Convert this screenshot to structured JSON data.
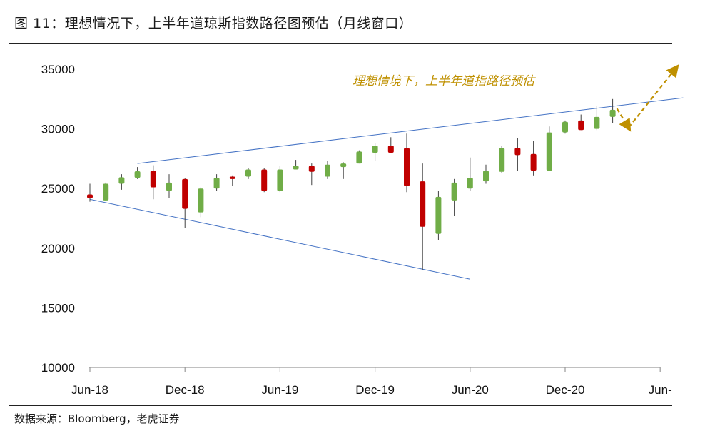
{
  "figure": {
    "title": "图 11：理想情况下，上半年道琼斯指数路径图预估（月线窗口）",
    "source": "数据来源：Bloomberg，老虎证券"
  },
  "chart_data": {
    "type": "candlestick",
    "title": "",
    "xlabel": "",
    "ylabel": "",
    "ylim": [
      10000,
      35000
    ],
    "y_ticks": [
      "35000",
      "30000",
      "25000",
      "20000",
      "15000",
      "10000"
    ],
    "x_ticks": [
      "Jun-18",
      "Dec-18",
      "Jun-19",
      "Dec-19",
      "Jun-20",
      "Dec-20",
      "Jun-"
    ],
    "up_color": "#70ad47",
    "down_color": "#c00000",
    "line_color": "#4472c4",
    "projection_color": "#bf9000",
    "candles": [
      {
        "date": "2018-06",
        "open": 24500,
        "high": 25400,
        "low": 23900,
        "close": 24200
      },
      {
        "date": "2018-07",
        "open": 24000,
        "high": 25500,
        "low": 24000,
        "close": 25400
      },
      {
        "date": "2018-08",
        "open": 25400,
        "high": 26200,
        "low": 24900,
        "close": 25950
      },
      {
        "date": "2018-09",
        "open": 25900,
        "high": 26800,
        "low": 25800,
        "close": 26450
      },
      {
        "date": "2018-10",
        "open": 26500,
        "high": 26950,
        "low": 24100,
        "close": 25100
      },
      {
        "date": "2018-11",
        "open": 24800,
        "high": 26200,
        "low": 24200,
        "close": 25500
      },
      {
        "date": "2018-12",
        "open": 25800,
        "high": 25900,
        "low": 21700,
        "close": 23300
      },
      {
        "date": "2019-01",
        "open": 23000,
        "high": 25100,
        "low": 22600,
        "close": 25000
      },
      {
        "date": "2019-02",
        "open": 25000,
        "high": 26200,
        "low": 24800,
        "close": 25900
      },
      {
        "date": "2019-03",
        "open": 26000,
        "high": 26100,
        "low": 25200,
        "close": 25800
      },
      {
        "date": "2019-04",
        "open": 26000,
        "high": 26700,
        "low": 25800,
        "close": 26600
      },
      {
        "date": "2019-05",
        "open": 26600,
        "high": 26700,
        "low": 24700,
        "close": 24800
      },
      {
        "date": "2019-06",
        "open": 24800,
        "high": 26900,
        "low": 24700,
        "close": 26600
      },
      {
        "date": "2019-07",
        "open": 26600,
        "high": 27400,
        "low": 26600,
        "close": 26900
      },
      {
        "date": "2019-08",
        "open": 26900,
        "high": 27100,
        "low": 25300,
        "close": 26400
      },
      {
        "date": "2019-09",
        "open": 26000,
        "high": 27300,
        "low": 25800,
        "close": 27000
      },
      {
        "date": "2019-10",
        "open": 26800,
        "high": 27200,
        "low": 25800,
        "close": 27100
      },
      {
        "date": "2019-11",
        "open": 27100,
        "high": 28200,
        "low": 27100,
        "close": 28100
      },
      {
        "date": "2019-12",
        "open": 28000,
        "high": 28800,
        "low": 27300,
        "close": 28600
      },
      {
        "date": "2020-01",
        "open": 28600,
        "high": 29300,
        "low": 28100,
        "close": 28000
      },
      {
        "date": "2020-02",
        "open": 28400,
        "high": 29600,
        "low": 24700,
        "close": 25200
      },
      {
        "date": "2020-03",
        "open": 25600,
        "high": 27100,
        "low": 18200,
        "close": 21800
      },
      {
        "date": "2020-04",
        "open": 21200,
        "high": 24800,
        "low": 20700,
        "close": 24300
      },
      {
        "date": "2020-05",
        "open": 24000,
        "high": 25800,
        "low": 22700,
        "close": 25500
      },
      {
        "date": "2020-06",
        "open": 25000,
        "high": 27600,
        "low": 24800,
        "close": 25900
      },
      {
        "date": "2020-07",
        "open": 25600,
        "high": 27000,
        "low": 25400,
        "close": 26500
      },
      {
        "date": "2020-08",
        "open": 26400,
        "high": 28600,
        "low": 26300,
        "close": 28400
      },
      {
        "date": "2020-09",
        "open": 28400,
        "high": 29200,
        "low": 26500,
        "close": 27800
      },
      {
        "date": "2020-10",
        "open": 27900,
        "high": 29000,
        "low": 26100,
        "close": 26500
      },
      {
        "date": "2020-11",
        "open": 26500,
        "high": 30200,
        "low": 26500,
        "close": 29700
      },
      {
        "date": "2020-12",
        "open": 29700,
        "high": 30700,
        "low": 29600,
        "close": 30600
      },
      {
        "date": "2021-01",
        "open": 30700,
        "high": 31200,
        "low": 29900,
        "close": 29900
      },
      {
        "date": "2021-02",
        "open": 30000,
        "high": 31900,
        "low": 29900,
        "close": 31000
      },
      {
        "date": "2021-03",
        "open": 31000,
        "high": 32500,
        "low": 30500,
        "close": 31600
      }
    ],
    "trendlines": [
      {
        "name": "upper",
        "from": {
          "date": "2018-09",
          "value": 27100
        },
        "to": {
          "date": "2021-07",
          "value": 32600
        }
      },
      {
        "name": "lower",
        "from": {
          "date": "2018-06",
          "value": 24100
        },
        "to": {
          "date": "2020-06",
          "value": 17400
        }
      }
    ],
    "projection": {
      "label": "理想情境下，上半年道指路径预估",
      "points": [
        {
          "date": "2021-03",
          "value": 31700
        },
        {
          "date": "2021-04",
          "value": 30100
        },
        {
          "date": "2021-07",
          "value": 35100
        }
      ]
    }
  }
}
